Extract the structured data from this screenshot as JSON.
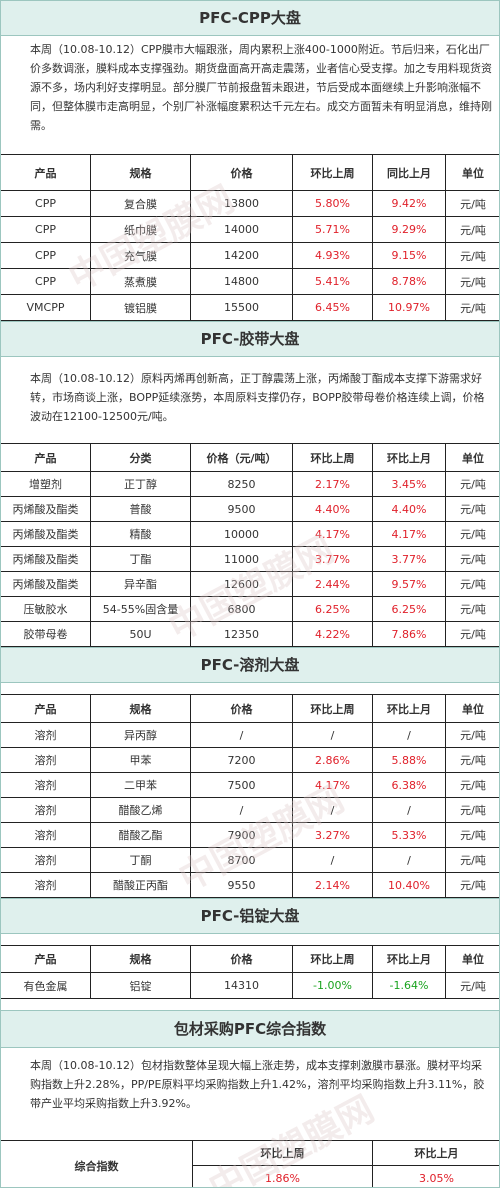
{
  "cpp": {
    "title": "PFC-CPP大盘",
    "paragraph": "本周（10.08-10.12）CPP膜市大幅跟涨，周内累积上涨400-1000附近。节后归来，石化出厂价多数调涨，膜料成本支撑强劲。期货盘面高开高走震荡，业者信心受支撑。加之专用料现货资源不多，场内利好支撑明显。部分膜厂节前报盘暂未跟进，节后受成本面继续上升影响涨幅不同，但整体膜市走高明显，个别厂补涨幅度累积达千元左右。成交方面暂未有明显消息，维持刚需。",
    "headers": [
      "产品",
      "规格",
      "价格",
      "环比上周",
      "同比上月",
      "单位"
    ],
    "rows": [
      [
        "CPP",
        "复合膜",
        "13800",
        "5.80%",
        "9.42%",
        "元/吨"
      ],
      [
        "CPP",
        "纸巾膜",
        "14000",
        "5.71%",
        "9.29%",
        "元/吨"
      ],
      [
        "CPP",
        "充气膜",
        "14200",
        "4.93%",
        "9.15%",
        "元/吨"
      ],
      [
        "CPP",
        "蒸煮膜",
        "14800",
        "5.41%",
        "8.78%",
        "元/吨"
      ],
      [
        "VMCPP",
        "镀铝膜",
        "15500",
        "6.45%",
        "10.97%",
        "元/吨"
      ]
    ]
  },
  "tape": {
    "title": "PFC-胶带大盘",
    "paragraph": "本周（10.08-10.12）原料丙烯再创新高，正丁醇震荡上涨，丙烯酸丁酯成本支撑下游需求好转，市场商谈上涨，BOPP延续涨势，本周原料支撑仍存，BOPP胶带母卷价格连续上调，价格波动在12100-12500元/吨。",
    "headers": [
      "产品",
      "分类",
      "价格（元/吨）",
      "环比上周",
      "环比上月",
      "单位"
    ],
    "rows": [
      [
        "增塑剂",
        "正丁醇",
        "8250",
        "2.17%",
        "3.45%",
        "元/吨"
      ],
      [
        "丙烯酸及酯类",
        "普酸",
        "9500",
        "4.40%",
        "4.40%",
        "元/吨"
      ],
      [
        "丙烯酸及酯类",
        "精酸",
        "10000",
        "4.17%",
        "4.17%",
        "元/吨"
      ],
      [
        "丙烯酸及酯类",
        "丁酯",
        "11000",
        "3.77%",
        "3.77%",
        "元/吨"
      ],
      [
        "丙烯酸及酯类",
        "异辛酯",
        "12600",
        "2.44%",
        "9.57%",
        "元/吨"
      ],
      [
        "压敏胶水",
        "54-55%固含量",
        "6800",
        "6.25%",
        "6.25%",
        "元/吨"
      ],
      [
        "胶带母卷",
        "50U",
        "12350",
        "4.22%",
        "7.86%",
        "元/吨"
      ]
    ]
  },
  "solvent": {
    "title": "PFC-溶剂大盘",
    "headers": [
      "产品",
      "规格",
      "价格",
      "环比上周",
      "环比上月",
      "单位"
    ],
    "rows": [
      [
        "溶剂",
        "异丙醇",
        "/",
        "/",
        "/",
        "元/吨"
      ],
      [
        "溶剂",
        "甲苯",
        "7200",
        "2.86%",
        "5.88%",
        "元/吨"
      ],
      [
        "溶剂",
        "二甲苯",
        "7500",
        "4.17%",
        "6.38%",
        "元/吨"
      ],
      [
        "溶剂",
        "醋酸乙烯",
        "/",
        "/",
        "/",
        "元/吨"
      ],
      [
        "溶剂",
        "醋酸乙酯",
        "7900",
        "3.27%",
        "5.33%",
        "元/吨"
      ],
      [
        "溶剂",
        "丁酮",
        "8700",
        "/",
        "/",
        "元/吨"
      ],
      [
        "溶剂",
        "醋酸正丙酯",
        "9550",
        "2.14%",
        "10.40%",
        "元/吨"
      ]
    ]
  },
  "aluminum": {
    "title": "PFC-铝锭大盘",
    "headers": [
      "产品",
      "规格",
      "价格",
      "环比上周",
      "环比上月",
      "单位"
    ],
    "rows": [
      [
        "有色金属",
        "铝锭",
        "14310",
        "-1.00%",
        "-1.64%",
        "元/吨"
      ]
    ]
  },
  "index": {
    "title": "包材采购PFC综合指数",
    "paragraph": "本周（10.08-10.12）包材指数整体呈现大幅上涨走势，成本支撑刺激膜市暴涨。膜材平均采购指数上升2.28%，PP/PE原料平均采购指数上升1.42%，溶剂平均采购指数上升3.11%，胶带产业平均采购指数上升3.92%。",
    "label": "综合指数",
    "headers": [
      "环比上周",
      "环比上月"
    ],
    "values": [
      "1.86%",
      "3.05%"
    ]
  },
  "watermark": "中国塑膜网",
  "colors": {
    "header_bg": "#dff0ed",
    "up": "#e0202a",
    "down": "#19a31e"
  }
}
